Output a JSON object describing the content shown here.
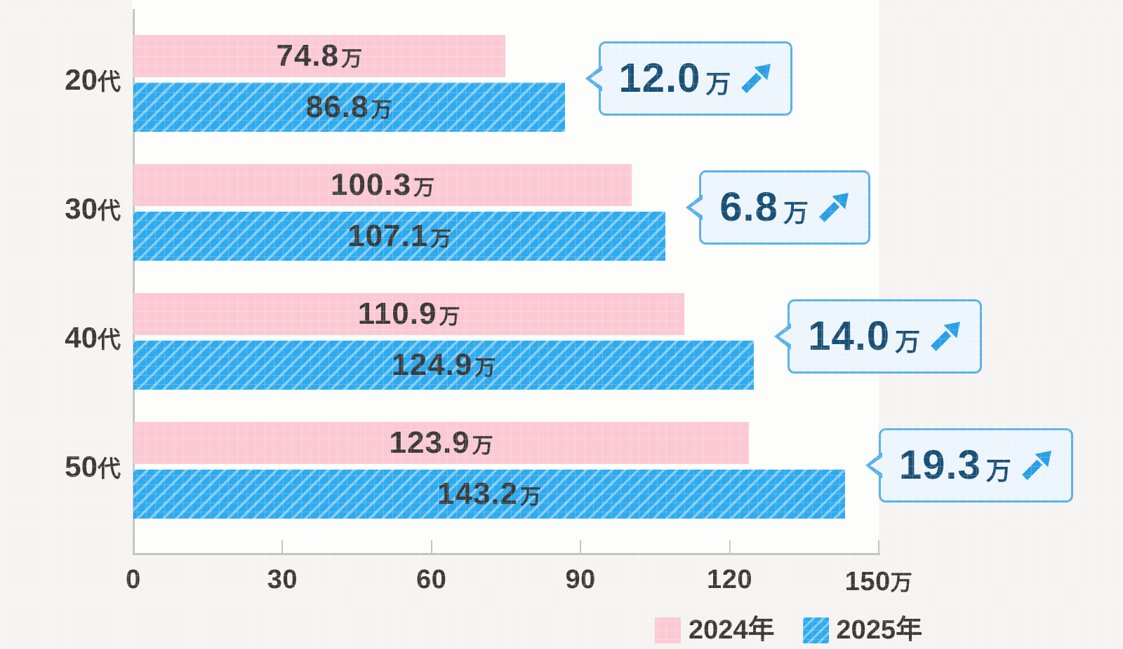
{
  "chart_data": {
    "type": "bar",
    "orientation": "horizontal",
    "unit": "万",
    "categories": [
      "20代",
      "30代",
      "40代",
      "50代"
    ],
    "series": [
      {
        "name": "2024年",
        "values": [
          74.8,
          100.3,
          110.9,
          123.9
        ]
      },
      {
        "name": "2025年",
        "values": [
          86.8,
          107.1,
          124.9,
          143.2
        ]
      }
    ],
    "value_labels": {
      "2024": [
        "74.8万",
        "100.3万",
        "110.9万",
        "123.9万"
      ],
      "2025": [
        "86.8万",
        "107.1万",
        "124.9万",
        "143.2万"
      ]
    },
    "increase_labels": [
      "12.0",
      "6.8",
      "14.0",
      "19.3"
    ],
    "increase_labels_full": [
      "12.0万",
      "6.8万",
      "14.0万",
      "19.3万"
    ],
    "x_axis": {
      "min": 0,
      "max": 150,
      "tick_step": 30,
      "tick_labels": [
        "0",
        "30",
        "60",
        "90",
        "120",
        "150"
      ],
      "last_tick_suffix": "万"
    },
    "legend_position": "bottom-right",
    "grid": false
  },
  "colors": {
    "background": "#f5f4f2",
    "bar_2024_pink": "#fbc9d3",
    "bar_2025_blue": "#2faaee",
    "bar_2025_stripe": "#85cef5",
    "value_text": "#3b3b3b",
    "axis_line": "#c4c3c1",
    "bubble_background": "#edf5fc",
    "bubble_border": "#5bb0ea",
    "bubble_text": "#1a5076",
    "arrow_blue": "#2b9fe5"
  }
}
